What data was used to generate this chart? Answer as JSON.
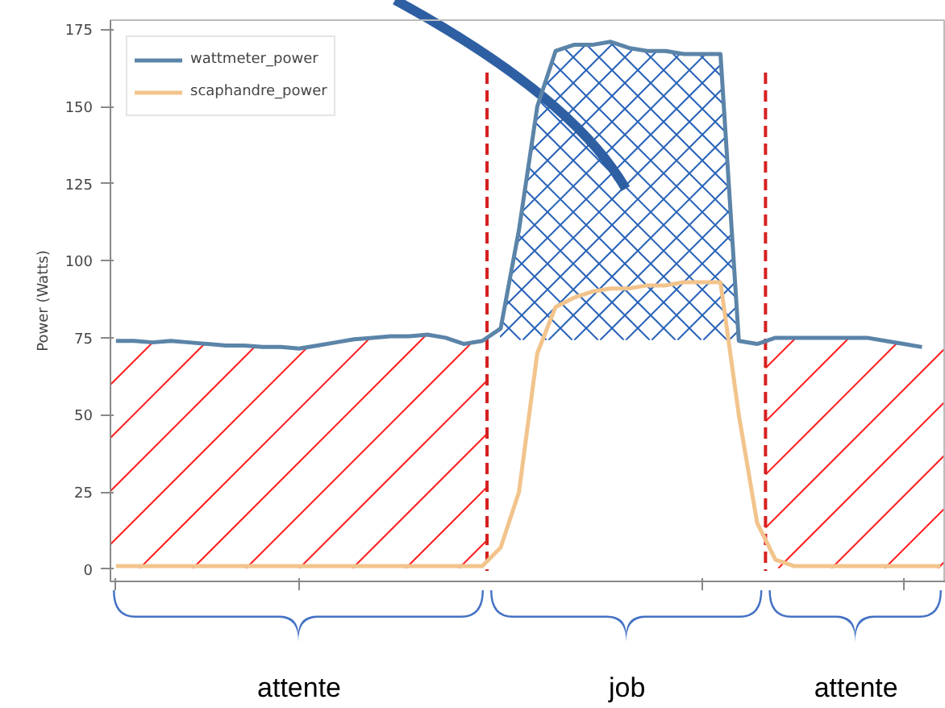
{
  "chart_data": {
    "type": "line",
    "ylabel": "Power (Watts)",
    "categories": [
      null,
      null,
      null,
      null,
      null,
      null,
      null,
      null,
      null,
      null,
      null,
      null,
      null,
      null,
      null,
      null,
      null,
      null,
      null,
      null,
      null,
      null,
      null,
      null,
      null,
      null,
      null,
      null,
      null,
      null,
      null,
      null,
      null,
      null,
      null,
      null,
      null,
      null,
      null,
      null,
      null,
      null,
      null,
      null,
      null,
      null
    ],
    "series": [
      {
        "name": "wattmeter_power",
        "color": "#5b84a8",
        "values": [
          74,
          74,
          73.5,
          74,
          73.5,
          73,
          72.5,
          72.5,
          72,
          72,
          71.5,
          72.5,
          73.5,
          74.5,
          75,
          75.5,
          75.5,
          76,
          75,
          73,
          74,
          78,
          110,
          150,
          168,
          170,
          170,
          171,
          169,
          168,
          168,
          167,
          167,
          167,
          74,
          73,
          75,
          75,
          75,
          75,
          75,
          75,
          74,
          73,
          72,
          null
        ]
      },
      {
        "name": "scaphandre_power",
        "color": "#f2c48c",
        "values": [
          1,
          1,
          1,
          1,
          1,
          1,
          1,
          1,
          1,
          1,
          1,
          1,
          1,
          1,
          1,
          1,
          1,
          1,
          1,
          1,
          1,
          7,
          25,
          70,
          85,
          88,
          90,
          91,
          91,
          92,
          92,
          93,
          93,
          93,
          50,
          15,
          3,
          1,
          1,
          1,
          1,
          1,
          1,
          1,
          1,
          1
        ]
      }
    ],
    "ylim": [
      -4,
      178
    ],
    "yticks": [
      0,
      25,
      50,
      75,
      100,
      125,
      150,
      175
    ],
    "tick_labels": "y",
    "grid": false,
    "legend": "top left",
    "annotations": [
      "attente",
      "job",
      "attente"
    ]
  }
}
